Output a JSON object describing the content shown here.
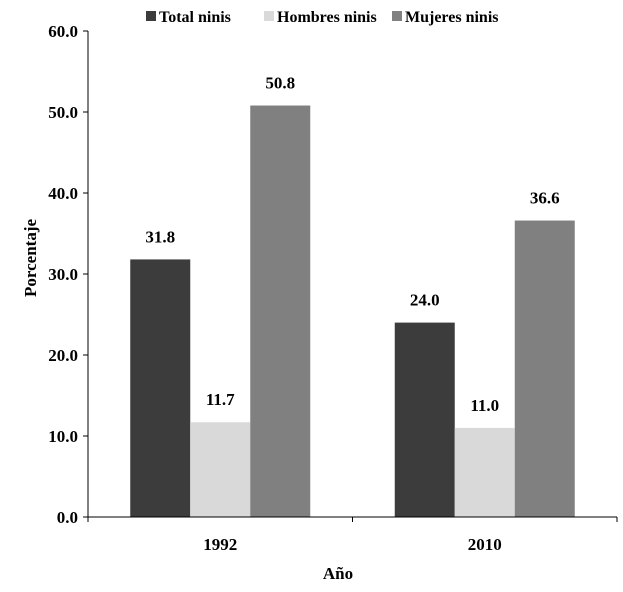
{
  "chart_data": {
    "type": "bar",
    "categories": [
      "1992",
      "2010"
    ],
    "series": [
      {
        "name": "Total ninis",
        "values": [
          31.8,
          24.0
        ],
        "color": "#3c3c3c"
      },
      {
        "name": "Hombres ninis",
        "values": [
          11.7,
          11.0
        ],
        "color": "#d9d9d9"
      },
      {
        "name": "Mujeres ninis",
        "values": [
          50.8,
          36.6
        ],
        "color": "#808080"
      }
    ],
    "data_labels": [
      [
        "31.8",
        "24.0"
      ],
      [
        "11.7",
        "11.0"
      ],
      [
        "50.8",
        "36.6"
      ]
    ],
    "y_ticks": [
      "0.0",
      "10.0",
      "20.0",
      "30.0",
      "40.0",
      "50.0",
      "60.0"
    ],
    "xlabel": "Año",
    "ylabel": "Porcentaje",
    "ylim": [
      0,
      60
    ],
    "grid": false,
    "legend_position": "top"
  }
}
